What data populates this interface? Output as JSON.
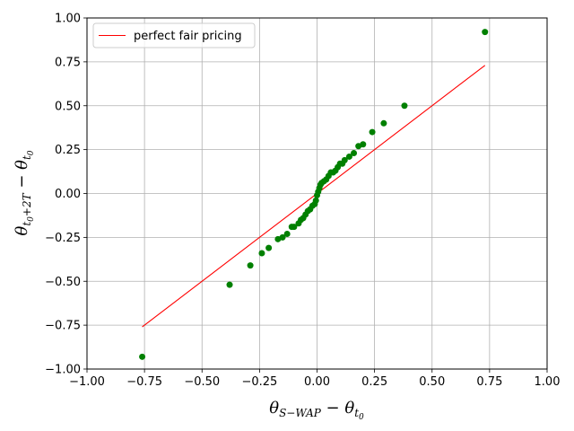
{
  "chart_data": {
    "type": "scatter",
    "xlim": [
      -1.0,
      1.0
    ],
    "ylim": [
      -1.0,
      1.0
    ],
    "grid": true,
    "legend_placement": "upper-left",
    "xticks": [
      "−1.00",
      "−0.75",
      "−0.50",
      "−0.25",
      "0.00",
      "0.25",
      "0.50",
      "0.75",
      "1.00"
    ],
    "yticks": [
      "−1.00",
      "−0.75",
      "−0.50",
      "−0.25",
      "0.00",
      "0.25",
      "0.50",
      "0.75",
      "1.00"
    ],
    "xlabel": "θS−WAP − θt0",
    "ylabel": "θt0+2T − θt0",
    "series": [
      {
        "kind": "line",
        "name": "perfect fair pricing",
        "color": "#ff0000",
        "x": [
          -0.76,
          0.73
        ],
        "y": [
          -0.76,
          0.73
        ]
      },
      {
        "kind": "scatter",
        "color": "#008000",
        "x": [
          -0.76,
          -0.38,
          -0.29,
          -0.24,
          -0.21,
          -0.17,
          -0.15,
          -0.13,
          -0.11,
          -0.1,
          -0.08,
          -0.07,
          -0.06,
          -0.05,
          -0.04,
          -0.03,
          -0.02,
          -0.01,
          -0.005,
          0.0,
          0.005,
          0.01,
          0.015,
          0.02,
          0.03,
          0.04,
          0.05,
          0.06,
          0.07,
          0.08,
          0.09,
          0.1,
          0.11,
          0.12,
          0.14,
          0.16,
          0.18,
          0.2,
          0.24,
          0.29,
          0.38,
          0.73
        ],
        "y": [
          -0.93,
          -0.52,
          -0.41,
          -0.34,
          -0.31,
          -0.26,
          -0.25,
          -0.23,
          -0.19,
          -0.19,
          -0.17,
          -0.15,
          -0.14,
          -0.12,
          -0.1,
          -0.09,
          -0.07,
          -0.06,
          -0.04,
          -0.01,
          0.01,
          0.03,
          0.05,
          0.06,
          0.07,
          0.08,
          0.1,
          0.12,
          0.12,
          0.13,
          0.15,
          0.17,
          0.17,
          0.19,
          0.21,
          0.23,
          0.27,
          0.28,
          0.35,
          0.4,
          0.5,
          0.92
        ]
      }
    ]
  }
}
